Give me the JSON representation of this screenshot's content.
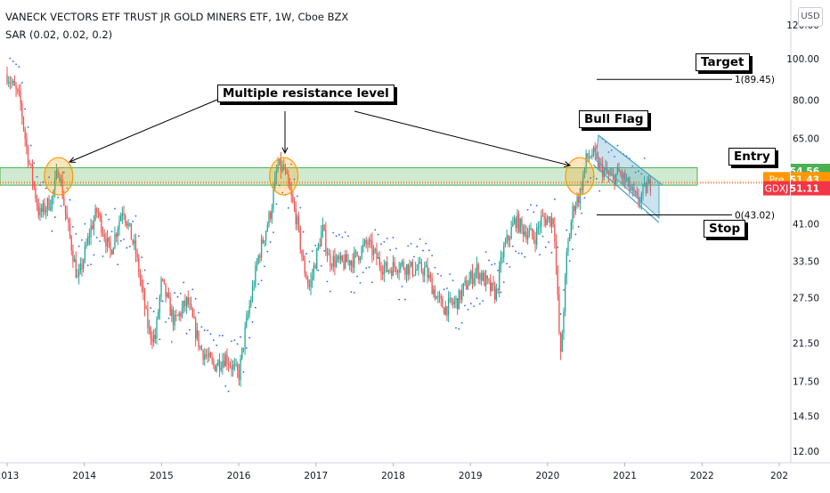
{
  "legend": {
    "title": "VANECK VECTORS ETF TRUST JR GOLD MINERS ETF, 1W, Cboe BZX",
    "indicator": "SAR (0.02, 0.02, 0.2)"
  },
  "currency": "USD",
  "annotations": {
    "multiple_resistance": "Multiple resistance level",
    "bull_flag": "Bull Flag",
    "target": "Target",
    "entry": "Entry",
    "stop": "Stop",
    "fib_top": "1(89.45)",
    "fib_bottom": "0(43.02)"
  },
  "price_tags": {
    "entry": {
      "label": "",
      "value": "54.56",
      "color": "#4caf50"
    },
    "pre": {
      "label": "Pre",
      "value": "51.43",
      "color": "#ff9800"
    },
    "last": {
      "label": "GDXJ",
      "value": "51.11",
      "color": "#f23645"
    }
  },
  "colors": {
    "up": "#26a69a",
    "down": "#ef5350",
    "sar": "#2962ff",
    "zone_fill": "#c8e6c9",
    "zone_stroke": "#4caf50",
    "circle": "#ff9800",
    "flag": "#4fa3c7"
  },
  "chart_data": {
    "type": "candlestick",
    "scale": "log",
    "ylim": [
      12,
      120
    ],
    "x_ticks": [
      "2013",
      "2014",
      "2015",
      "2016",
      "2017",
      "2018",
      "2019",
      "2020",
      "2021",
      "2022",
      "202"
    ],
    "y_ticks": [
      "12.00",
      "14.50",
      "17.50",
      "21.50",
      "27.50",
      "33.50",
      "41.00",
      "50.00",
      "65.00",
      "80.00",
      "100.00",
      "120.00"
    ],
    "resistance_zone": [
      50.5,
      55.5
    ],
    "target": 89.45,
    "stop": 43.02,
    "entry": 54.56,
    "resistance_touches": [
      "2013-09",
      "2016-08",
      "2020-06"
    ],
    "anchors": [
      [
        "2013-01",
        92
      ],
      [
        "2013-03",
        80
      ],
      [
        "2013-04",
        62
      ],
      [
        "2013-06",
        43
      ],
      [
        "2013-08",
        47
      ],
      [
        "2013-09",
        56
      ],
      [
        "2013-10",
        44
      ],
      [
        "2013-12",
        30
      ],
      [
        "2014-02",
        40
      ],
      [
        "2014-03",
        44
      ],
      [
        "2014-05",
        35
      ],
      [
        "2014-07",
        45
      ],
      [
        "2014-09",
        35
      ],
      [
        "2014-11",
        23
      ],
      [
        "2014-12",
        22
      ],
      [
        "2015-01",
        30
      ],
      [
        "2015-03",
        24
      ],
      [
        "2015-05",
        27
      ],
      [
        "2015-07",
        21
      ],
      [
        "2015-09",
        19
      ],
      [
        "2015-11",
        20
      ],
      [
        "2016-01",
        18
      ],
      [
        "2016-02",
        23
      ],
      [
        "2016-04",
        34
      ],
      [
        "2016-06",
        44
      ],
      [
        "2016-07",
        56
      ],
      [
        "2016-08",
        55
      ],
      [
        "2016-10",
        42
      ],
      [
        "2016-11",
        33
      ],
      [
        "2016-12",
        29
      ],
      [
        "2017-02",
        40
      ],
      [
        "2017-03",
        34
      ],
      [
        "2017-05",
        33
      ],
      [
        "2017-07",
        34
      ],
      [
        "2017-09",
        37
      ],
      [
        "2017-11",
        33
      ],
      [
        "2017-12",
        32
      ],
      [
        "2018-02",
        33
      ],
      [
        "2018-04",
        32
      ],
      [
        "2018-06",
        32
      ],
      [
        "2018-08",
        27
      ],
      [
        "2018-09",
        26
      ],
      [
        "2018-11",
        27
      ],
      [
        "2018-12",
        29
      ],
      [
        "2019-02",
        32
      ],
      [
        "2019-04",
        29
      ],
      [
        "2019-05",
        28
      ],
      [
        "2019-06",
        35
      ],
      [
        "2019-08",
        42
      ],
      [
        "2019-09",
        40
      ],
      [
        "2019-11",
        38
      ],
      [
        "2019-12",
        42
      ],
      [
        "2020-02",
        42
      ],
      [
        "2020-03",
        19.5
      ],
      [
        "2020-04",
        35
      ],
      [
        "2020-05",
        45
      ],
      [
        "2020-06",
        48
      ],
      [
        "2020-07",
        58
      ],
      [
        "2020-08",
        60
      ],
      [
        "2020-09",
        56
      ],
      [
        "2020-10",
        54
      ],
      [
        "2020-11",
        52
      ],
      [
        "2020-12",
        54
      ],
      [
        "2021-01",
        52
      ],
      [
        "2021-03",
        46
      ],
      [
        "2021-04",
        49
      ],
      [
        "2021-05",
        51.1
      ]
    ]
  }
}
